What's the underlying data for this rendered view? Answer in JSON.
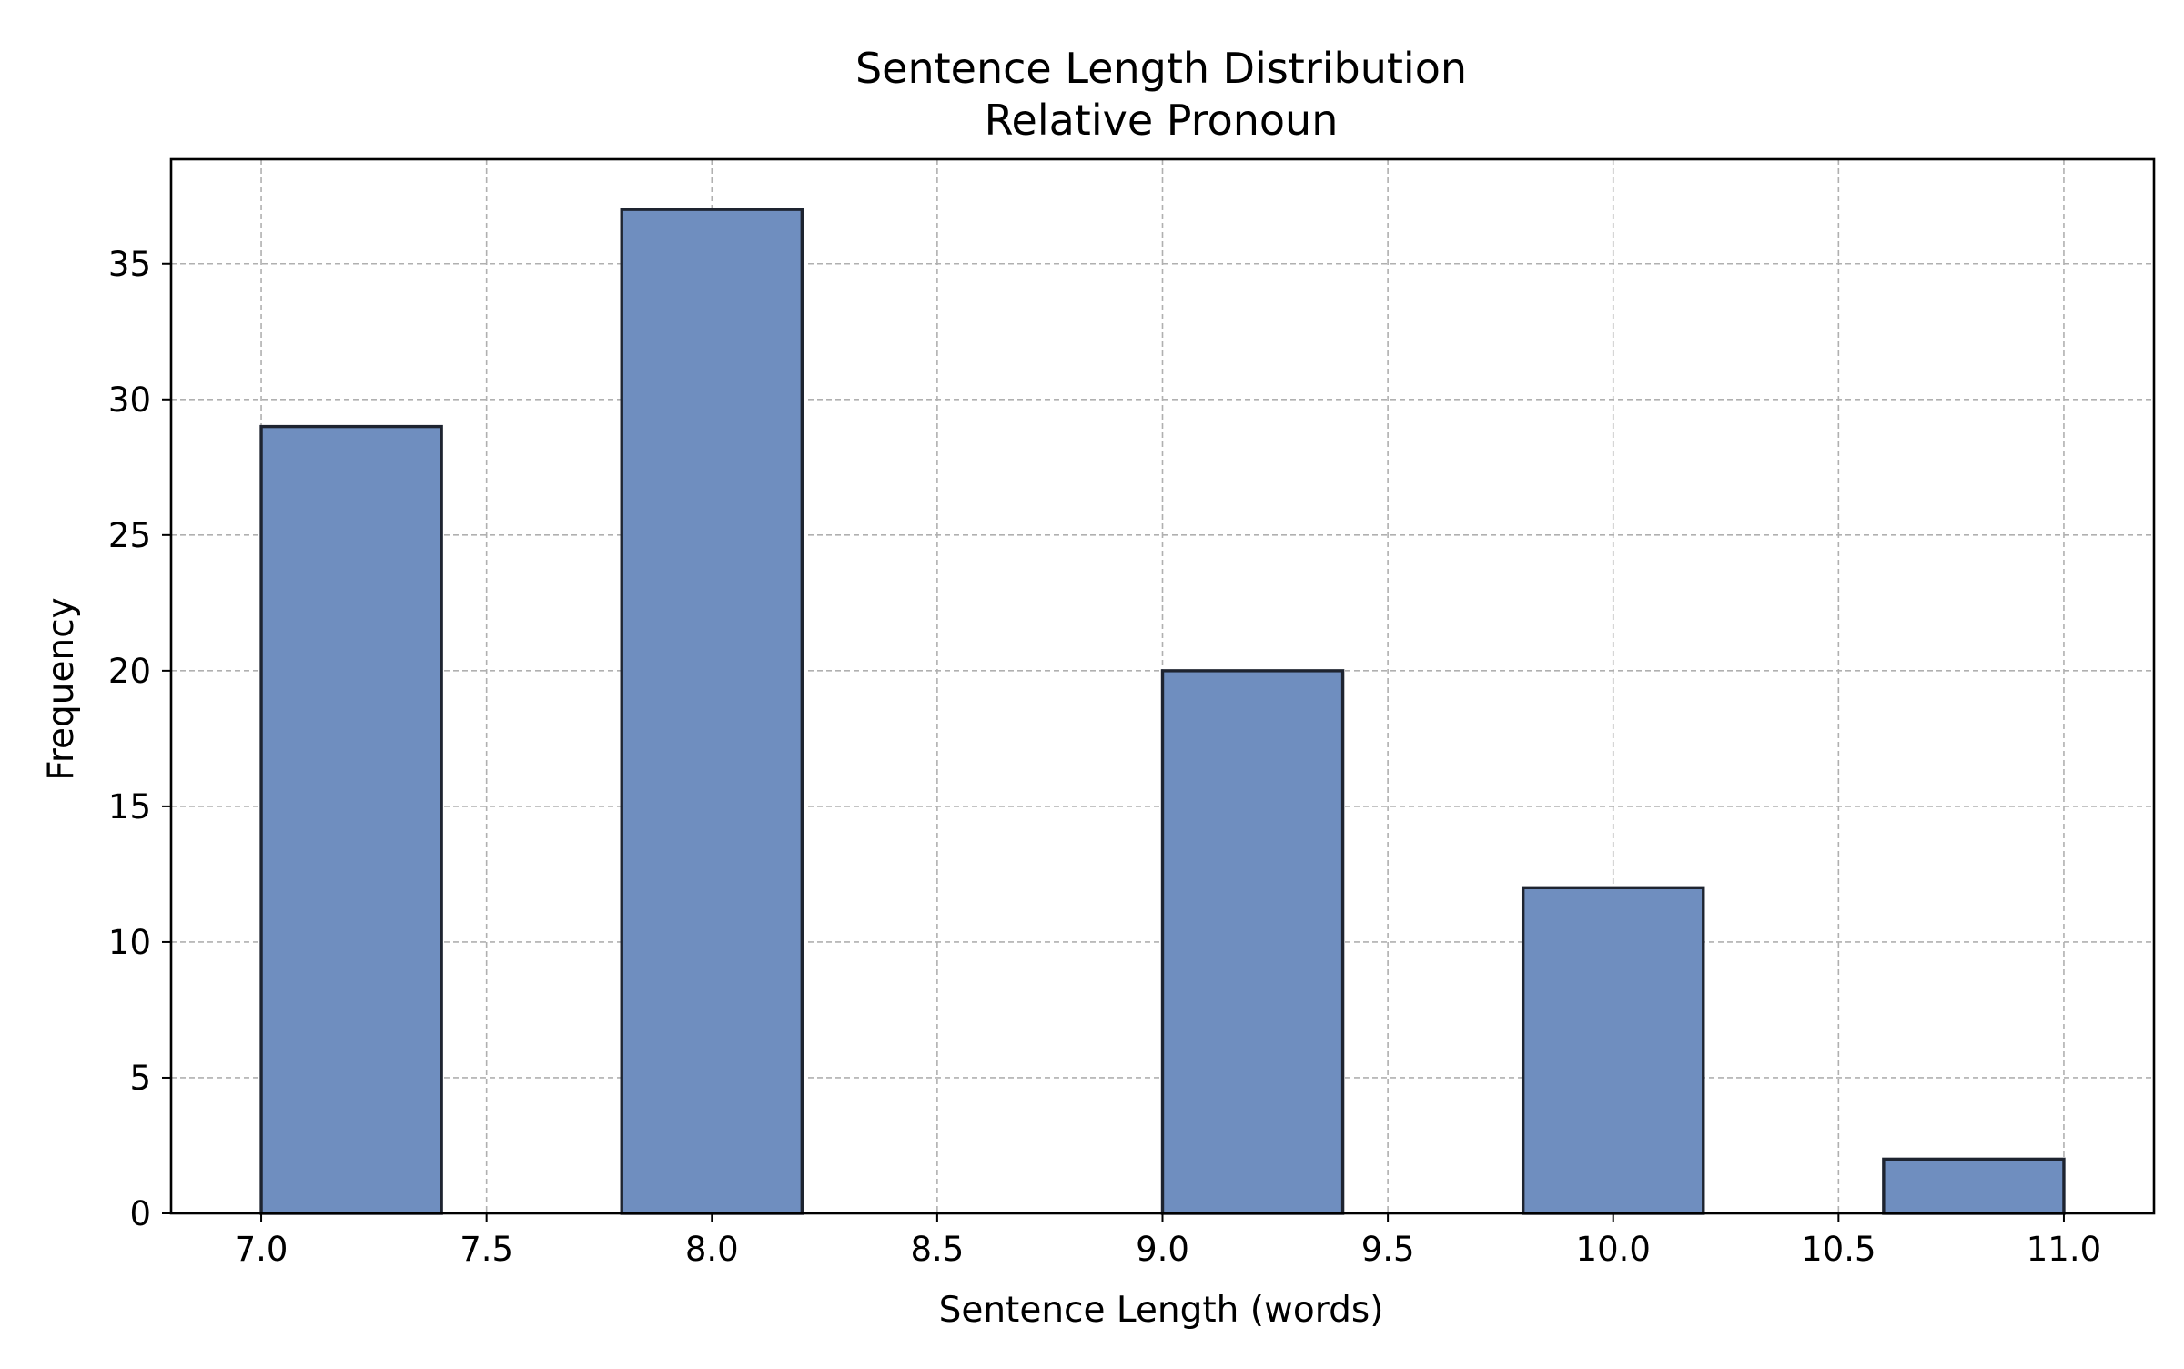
{
  "chart_data": {
    "type": "bar",
    "title": "Sentence Length Distribution",
    "subtitle": "Relative Pronoun",
    "xlabel": "Sentence Length (words)",
    "ylabel": "Frequency",
    "xlim": [
      6.8,
      11.2
    ],
    "ylim": [
      0,
      38.85
    ],
    "xticks": [
      "7.0",
      "7.5",
      "8.0",
      "8.5",
      "9.0",
      "9.5",
      "10.0",
      "10.5",
      "11.0"
    ],
    "yticks": [
      "0",
      "5",
      "10",
      "15",
      "20",
      "25",
      "30",
      "35"
    ],
    "grid": true,
    "bins": [
      {
        "x0": 7.0,
        "x1": 7.4,
        "value": 29
      },
      {
        "x0": 7.4,
        "x1": 7.8,
        "value": 0
      },
      {
        "x0": 7.8,
        "x1": 8.2,
        "value": 37
      },
      {
        "x0": 8.2,
        "x1": 8.6,
        "value": 0
      },
      {
        "x0": 8.6,
        "x1": 9.0,
        "value": 0
      },
      {
        "x0": 9.0,
        "x1": 9.4,
        "value": 20
      },
      {
        "x0": 9.4,
        "x1": 9.8,
        "value": 0
      },
      {
        "x0": 9.8,
        "x1": 10.2,
        "value": 12
      },
      {
        "x0": 10.2,
        "x1": 10.6,
        "value": 0
      },
      {
        "x0": 10.6,
        "x1": 11.0,
        "value": 2
      }
    ],
    "bar_color": "#6f8ebf",
    "edge_color": "#1e2430"
  }
}
